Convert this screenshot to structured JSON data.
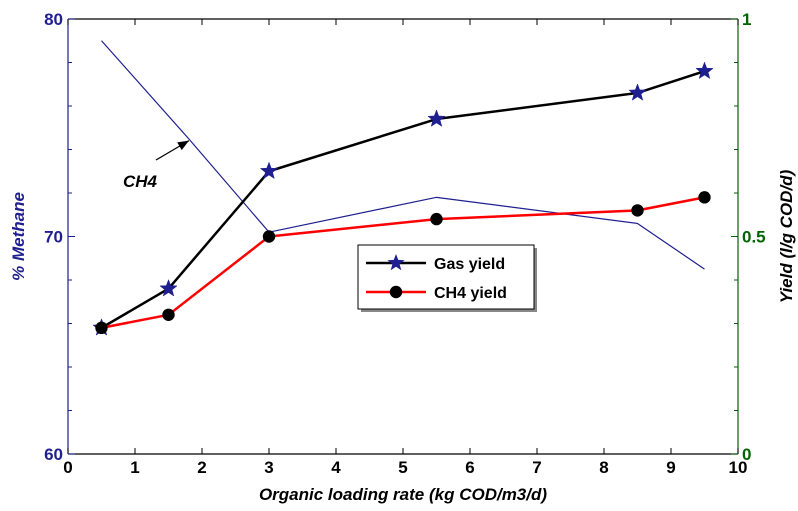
{
  "chart_data": {
    "type": "line",
    "xlabel": "Organic loading rate (kg COD/m3/d)",
    "ylabel": "% Methane",
    "y2label": "Yield (l/g COD/d)",
    "xlim": [
      0,
      10
    ],
    "ylim": [
      60,
      80
    ],
    "y2lim": [
      0,
      1
    ],
    "x_ticks": [
      "0",
      "1",
      "2",
      "3",
      "4",
      "5",
      "6",
      "7",
      "8",
      "9",
      "10"
    ],
    "y_ticks": [
      "60",
      "70",
      "80"
    ],
    "y2_ticks": [
      "0",
      "0.5",
      "1"
    ],
    "series": [
      {
        "name": "CH4",
        "axis": "left",
        "color": "#1f1f8f",
        "marker": "none",
        "x": [
          0.5,
          1.8,
          3.0,
          5.5,
          8.5,
          9.5
        ],
        "values": [
          79.0,
          74.5,
          70.2,
          71.8,
          70.6,
          68.5
        ]
      },
      {
        "name": "Gas yield",
        "axis": "right",
        "color": "#000000",
        "marker": "star",
        "marker_color": "#1f1f8f",
        "x": [
          0.5,
          1.5,
          3.0,
          5.5,
          8.5,
          9.5
        ],
        "values": [
          0.29,
          0.38,
          0.65,
          0.77,
          0.83,
          0.88
        ]
      },
      {
        "name": "CH4 yield",
        "axis": "right",
        "color": "#ff0000",
        "marker": "circle",
        "marker_color": "#000000",
        "x": [
          0.5,
          1.5,
          3.0,
          5.5,
          8.5,
          9.5
        ],
        "values": [
          0.29,
          0.32,
          0.5,
          0.54,
          0.56,
          0.59
        ]
      }
    ],
    "annotations": [
      {
        "text": "CH4",
        "arrow_to": {
          "x": 1.85,
          "y": 74.5
        }
      }
    ],
    "legend": {
      "placement": "center",
      "entries": [
        "Gas yield",
        "CH4 yield"
      ]
    },
    "colors": {
      "left_axis": "#1f1f8f",
      "right_axis": "#006400",
      "frame": "#000000"
    },
    "grid": false
  }
}
